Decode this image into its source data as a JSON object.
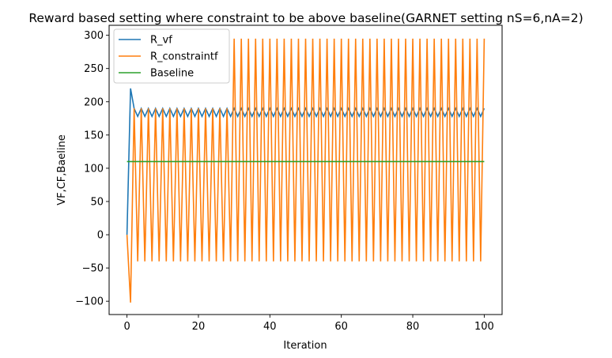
{
  "chart_data": {
    "type": "line",
    "title": "Reward based setting where constraint to be above baseline(GARNET setting nS=6,nA=2)",
    "xlabel": "Iteration",
    "ylabel": "VF,CF,Baeline",
    "xlim": [
      -5,
      105
    ],
    "ylim": [
      -120,
      315
    ],
    "xticks": [
      0,
      20,
      40,
      60,
      80,
      100
    ],
    "yticks": [
      -100,
      -50,
      0,
      50,
      100,
      150,
      200,
      250,
      300
    ],
    "grid": false,
    "legend_position": "top-left",
    "series": [
      {
        "name": "R_vf",
        "color": "#1f77b4",
        "pattern": {
          "start": 0,
          "end": 100,
          "first_values": [
            0,
            220
          ],
          "alternate_from": 2,
          "odd_value": 178,
          "even_value": 190,
          "last_value": 190
        }
      },
      {
        "name": "R_constraintf",
        "color": "#ff7f0e",
        "pattern": {
          "start": 0,
          "end": 100,
          "first_values": [
            0,
            -102,
            190
          ],
          "alternate_from": 3,
          "odd_value": -40,
          "even_value": 190,
          "late_even_value": 295,
          "late_from": 30,
          "last_value": 295
        }
      },
      {
        "name": "Baseline",
        "color": "#2ca02c",
        "x": [
          0,
          100
        ],
        "y": [
          110,
          110
        ]
      }
    ]
  }
}
